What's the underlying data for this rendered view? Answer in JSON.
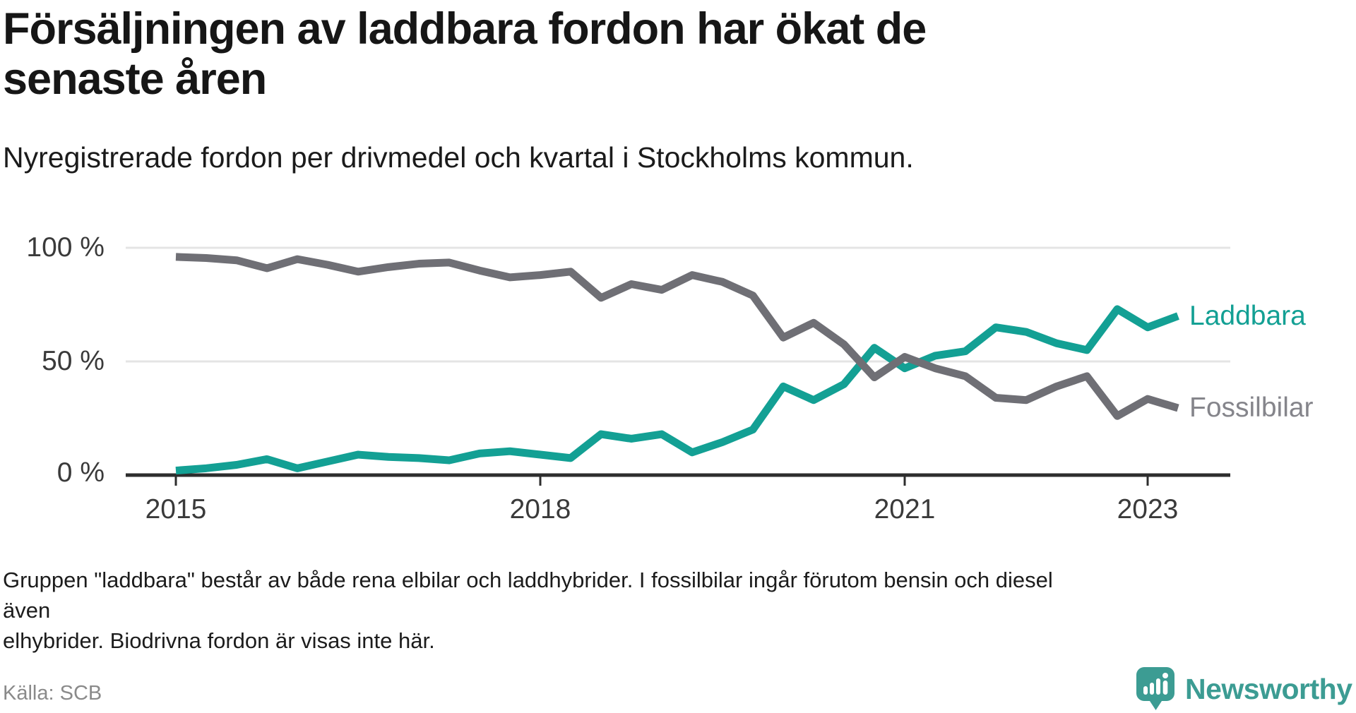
{
  "header": {
    "title": "Försäljningen av laddbara fordon har ökat de senaste åren",
    "subtitle": "Nyregistrerade fordon per drivmedel och kvartal i Stockholms kommun."
  },
  "chart_data": {
    "type": "line",
    "title": "Försäljningen av laddbara fordon har ökat de senaste åren",
    "subtitle": "Nyregistrerade fordon per drivmedel och kvartal i Stockholms kommun.",
    "unit": "%",
    "ylim": [
      0,
      100
    ],
    "grid": "horizontal",
    "legend_position": "right-of-line-end",
    "categories": [
      "2015 Q1",
      "2015 Q2",
      "2015 Q3",
      "2015 Q4",
      "2016 Q1",
      "2016 Q2",
      "2016 Q3",
      "2016 Q4",
      "2017 Q1",
      "2017 Q2",
      "2017 Q3",
      "2017 Q4",
      "2018 Q1",
      "2018 Q2",
      "2018 Q3",
      "2018 Q4",
      "2019 Q1",
      "2019 Q2",
      "2019 Q3",
      "2019 Q4",
      "2020 Q1",
      "2020 Q2",
      "2020 Q3",
      "2020 Q4",
      "2021 Q1",
      "2021 Q2",
      "2021 Q3",
      "2021 Q4",
      "2022 Q1",
      "2022 Q2",
      "2022 Q3",
      "2022 Q4",
      "2023 Q1",
      "2023 Q2"
    ],
    "series": [
      {
        "name": "Laddbara",
        "color": "#13A094",
        "values": [
          2,
          3,
          4.5,
          7,
          3,
          6,
          9,
          8,
          7.5,
          6.5,
          9.5,
          10.5,
          9,
          7.5,
          18,
          16,
          18,
          10,
          14.5,
          20,
          39,
          33,
          40,
          56,
          47,
          52.5,
          54.5,
          65,
          63,
          58,
          55,
          73,
          65,
          70
        ]
      },
      {
        "name": "Fossilbilar",
        "color": "#6F6F75",
        "values": [
          96,
          95.5,
          94.5,
          91,
          95,
          92.5,
          89.5,
          91.5,
          93,
          93.5,
          90,
          87,
          88,
          89.5,
          78,
          84,
          81.5,
          88,
          85,
          79,
          60.5,
          67,
          57.5,
          43,
          52,
          47,
          43.5,
          34,
          33,
          39,
          43.5,
          26,
          33.5,
          29.5
        ]
      }
    ],
    "y_ticks": [
      {
        "label": "100 %",
        "value": 100
      },
      {
        "label": "50 %",
        "value": 50
      },
      {
        "label": "0 %",
        "value": 0
      }
    ],
    "x_ticks": [
      {
        "label": "2015",
        "index": 0
      },
      {
        "label": "2018",
        "index": 12
      },
      {
        "label": "2021",
        "index": 24
      },
      {
        "label": "2023",
        "index": 32
      }
    ]
  },
  "footer": {
    "note_line1": "Gruppen \"laddbara\" består av både rena elbilar och laddhybrider. I fossilbilar ingår förutom bensin och diesel även",
    "note_line2": "elhybrider. Biodrivna fordon är visas inte här.",
    "source": "Källa: SCB",
    "brand": "Newsworthy"
  },
  "colors": {
    "laddbara": "#13A094",
    "fossilbilar": "#6F6F75",
    "axis": "#2D2D2D",
    "gridline": "#E4E4E4",
    "brand_teal": "#3C9C93"
  }
}
